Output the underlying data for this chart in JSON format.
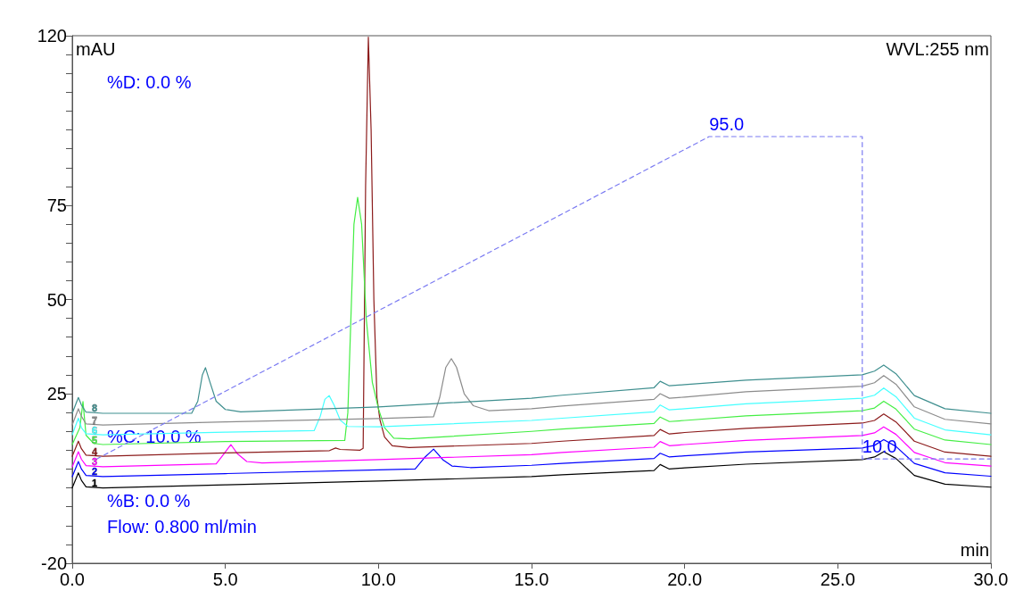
{
  "chart_data": {
    "type": "line",
    "xlabel": "min",
    "ylabel": "mAU",
    "annotations": [
      "WVL:255 nm",
      "%D: 0.0 %",
      "%C: 10.0 %",
      "%B: 0.0 %",
      "Flow: 0.800 ml/min"
    ],
    "xlim": [
      0,
      30
    ],
    "ylim": [
      -20,
      120
    ],
    "y2lim": [
      -17.5,
      121.6
    ],
    "xticks": [
      {
        "value": 0,
        "label": "0.0"
      },
      {
        "value": 5,
        "label": "5.0"
      },
      {
        "value": 10,
        "label": "10.0"
      },
      {
        "value": 15,
        "label": "15.0"
      },
      {
        "value": 20,
        "label": "20.0"
      },
      {
        "value": 25,
        "label": "25.0"
      },
      {
        "value": 30,
        "label": "30.0"
      }
    ],
    "yticks": [
      -20,
      {
        "value": -15,
        "label": null
      },
      {
        "value": -10,
        "label": null
      },
      {
        "value": -5,
        "label": null
      },
      {
        "value": 0,
        "label": null
      },
      {
        "value": 5,
        "label": null
      },
      {
        "value": 10,
        "label": null
      },
      {
        "value": 15,
        "label": null
      },
      {
        "value": 20,
        "label": null
      },
      25,
      {
        "value": 30,
        "label": null
      },
      {
        "value": 35,
        "label": null
      },
      {
        "value": 40,
        "label": null
      },
      {
        "value": 45,
        "label": null
      },
      50,
      {
        "value": 55,
        "label": null
      },
      {
        "value": 60,
        "label": null
      },
      {
        "value": 65,
        "label": null
      },
      {
        "value": 70,
        "label": null
      },
      75,
      {
        "value": 80,
        "label": null
      },
      {
        "value": 85,
        "label": null
      },
      {
        "value": 90,
        "label": null
      },
      {
        "value": 95,
        "label": null
      },
      {
        "value": 100,
        "label": null
      },
      {
        "value": 105,
        "label": null
      },
      {
        "value": 110,
        "label": null
      },
      {
        "value": 115,
        "label": null
      },
      120
    ],
    "marker": "none",
    "line_style": "solid",
    "series": [
      {
        "name": "1",
        "color": "#000000",
        "x": [
          0,
          0.2,
          0.3,
          0.45,
          1,
          5,
          10,
          15,
          16,
          19,
          19.2,
          19.5,
          20,
          22,
          25.8,
          26.2,
          26.5,
          26.9,
          27.5,
          28.5,
          30
        ],
        "values": [
          0,
          4,
          2,
          0.3,
          0,
          0.8,
          1.8,
          3,
          3.5,
          4.6,
          6.2,
          5.0,
          5.3,
          6.3,
          7.5,
          8.2,
          9.6,
          7.8,
          3.3,
          1,
          0.2
        ]
      },
      {
        "name": "2",
        "color": "#0000ff",
        "x": [
          0,
          0.2,
          0.3,
          0.45,
          1,
          5,
          10,
          11.2,
          11.5,
          11.8,
          12.1,
          12.4,
          13,
          15,
          16,
          19,
          19.2,
          19.5,
          20,
          22,
          25.8,
          26.2,
          26.5,
          26.9,
          27.5,
          28.5,
          30
        ],
        "values": [
          3,
          7,
          5,
          3.3,
          3,
          3.8,
          4.8,
          5.0,
          8.0,
          10.3,
          7.5,
          5.8,
          5.4,
          6.0,
          6.5,
          7.8,
          9.2,
          8.2,
          8.5,
          9.5,
          10.6,
          11.3,
          12.8,
          11,
          6.5,
          4,
          3.1
        ]
      },
      {
        "name": "3",
        "color": "#ff00ff",
        "x": [
          0,
          0.2,
          0.3,
          0.45,
          1,
          4.7,
          4.95,
          5.18,
          5.4,
          5.7,
          6.2,
          10,
          15,
          16,
          19,
          19.2,
          19.5,
          20,
          22,
          25.8,
          26.2,
          26.5,
          26.9,
          27.5,
          28.5,
          30
        ],
        "values": [
          5.6,
          9.6,
          7.6,
          5.9,
          5.6,
          6.4,
          9.0,
          11.5,
          9.0,
          7.0,
          6.6,
          7.5,
          8.8,
          9.4,
          10.8,
          12.3,
          11.2,
          11.5,
          12.6,
          13.9,
          14.6,
          16.2,
          14.2,
          9.4,
          6.7,
          5.8
        ]
      },
      {
        "name": "4",
        "color": "#8b1a1a",
        "x": [
          0,
          0.2,
          0.3,
          0.45,
          1,
          5,
          8.4,
          8.6,
          8.75,
          9.4,
          9.5,
          9.58,
          9.67,
          9.76,
          9.85,
          9.95,
          10.05,
          10.2,
          10.45,
          11,
          15,
          16,
          19,
          19.2,
          19.5,
          20,
          22,
          25.8,
          26.2,
          26.5,
          26.9,
          27.5,
          28.5,
          30
        ],
        "values": [
          8.4,
          12.4,
          10.4,
          8.7,
          8.4,
          9.3,
          9.9,
          10.6,
          10.2,
          10.0,
          10.5,
          80,
          119.6,
          95,
          50,
          24,
          18,
          13.5,
          11.2,
          10.7,
          11.8,
          12.4,
          13.9,
          15.5,
          14.3,
          14.7,
          15.8,
          17.2,
          17.9,
          19.6,
          17.5,
          12.4,
          9.5,
          8.4
        ]
      },
      {
        "name": "5",
        "color": "#44ee44",
        "x": [
          0,
          0.25,
          0.35,
          0.45,
          0.7,
          1,
          5,
          8.9,
          9.0,
          9.1,
          9.2,
          9.32,
          9.45,
          9.6,
          9.8,
          10.0,
          10.2,
          10.5,
          11,
          15,
          16,
          19,
          19.2,
          19.5,
          20,
          22,
          25.8,
          26.2,
          26.5,
          26.9,
          27.5,
          28.5,
          30
        ],
        "values": [
          11.5,
          16,
          22.9,
          14,
          11.8,
          11.5,
          12.3,
          12.6,
          20,
          45,
          70,
          77.1,
          70,
          45,
          28,
          21,
          16,
          13.2,
          13.0,
          15.0,
          15.6,
          17.1,
          18.8,
          17.6,
          17.9,
          19.1,
          20.5,
          21.2,
          23,
          20.9,
          15.6,
          12.7,
          11.5
        ]
      },
      {
        "name": "6",
        "color": "#44ffff",
        "x": [
          0,
          0.2,
          0.3,
          0.45,
          1,
          5,
          7.9,
          8.1,
          8.25,
          8.39,
          8.55,
          8.75,
          9.0,
          10,
          15,
          16,
          19,
          19.2,
          19.5,
          20,
          22,
          25.8,
          26.2,
          26.5,
          26.9,
          27.5,
          28.5,
          30
        ],
        "values": [
          14.1,
          18.5,
          16,
          14.4,
          14.1,
          14.8,
          15.2,
          19,
          23.5,
          24.5,
          22,
          18,
          16.3,
          16.2,
          17.9,
          18.5,
          20.2,
          22,
          20.7,
          21,
          22.3,
          23.8,
          24.6,
          26.5,
          24.2,
          18.5,
          15.4,
          14.1
        ]
      },
      {
        "name": "7",
        "color": "#8c8c8c",
        "x": [
          0,
          0.2,
          0.3,
          0.45,
          1,
          5,
          10,
          11.8,
          12.0,
          12.2,
          12.38,
          12.55,
          12.8,
          13.1,
          13.6,
          15,
          16,
          19,
          19.2,
          19.5,
          20,
          22,
          25.8,
          26.2,
          26.5,
          26.9,
          27.5,
          28.5,
          30
        ],
        "values": [
          16.7,
          21,
          19,
          17,
          16.7,
          17.5,
          18.4,
          18.9,
          24,
          32,
          34.3,
          32,
          25,
          21.8,
          20.5,
          21.0,
          21.7,
          23.5,
          25.0,
          23.8,
          24.1,
          25.5,
          27.0,
          27.9,
          29.8,
          27.5,
          21.5,
          18.2,
          17.0
        ]
      },
      {
        "name": "8",
        "color": "#3f8f8f",
        "x": [
          0,
          0.2,
          0.3,
          0.45,
          1,
          3.9,
          4.1,
          4.25,
          4.35,
          4.5,
          4.7,
          5.0,
          5.5,
          10,
          15,
          16,
          19,
          19.2,
          19.5,
          20,
          22,
          25.8,
          26.2,
          26.5,
          26.9,
          27.5,
          28.5,
          30
        ],
        "values": [
          19.8,
          24,
          22,
          20.1,
          19.8,
          19.8,
          23,
          30,
          31.9,
          28,
          23,
          20.8,
          20.2,
          21.5,
          23.8,
          24.6,
          26.6,
          28.3,
          27.1,
          27.4,
          28.6,
          30.0,
          31.0,
          32.6,
          30.3,
          24.5,
          21,
          19.8
        ]
      },
      {
        "color": "#7b7bf2",
        "axis": "y2",
        "line_style": "dashed",
        "x": [
          0.8,
          20.8,
          25.8,
          25.8,
          30
        ],
        "values": [
          10,
          95,
          95,
          10,
          10
        ],
        "value_labels": [
          null,
          "95.0",
          null,
          "10.0",
          null
        ]
      }
    ]
  }
}
